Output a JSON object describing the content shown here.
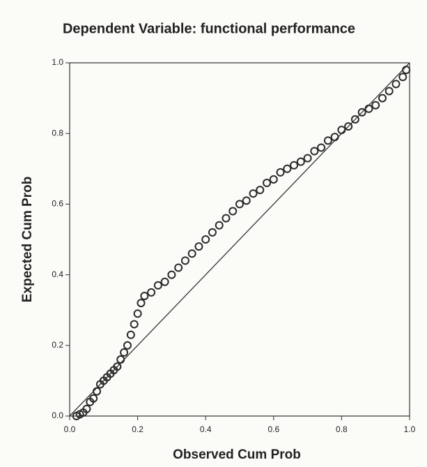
{
  "chart_data": {
    "type": "scatter",
    "title": "Dependent Variable: functional performance",
    "x_label": "Observed Cum Prob",
    "y_label": "Expected Cum Prob",
    "xlim": [
      0,
      1
    ],
    "ylim": [
      0,
      1
    ],
    "xticks": [
      {
        "value": 0,
        "label": "0.0"
      },
      {
        "value": 0.2,
        "label": "0.2"
      },
      {
        "value": 0.4,
        "label": "0.4"
      },
      {
        "value": 0.6,
        "label": "0.6"
      },
      {
        "value": 0.8,
        "label": "0.8"
      },
      {
        "value": 1,
        "label": "1.0"
      }
    ],
    "yticks": [
      {
        "value": 0,
        "label": "0.0"
      },
      {
        "value": 0.2,
        "label": "0.2"
      },
      {
        "value": 0.4,
        "label": "0.4"
      },
      {
        "value": 0.6,
        "label": "0.6"
      },
      {
        "value": 0.8,
        "label": "0.8"
      },
      {
        "value": 1,
        "label": "1.0"
      }
    ],
    "color": "#2a2a2a",
    "diagonal": {
      "x": [
        0,
        1
      ],
      "y": [
        0,
        1
      ]
    },
    "x": [
      0.02,
      0.03,
      0.04,
      0.05,
      0.06,
      0.07,
      0.08,
      0.09,
      0.1,
      0.11,
      0.12,
      0.13,
      0.14,
      0.15,
      0.16,
      0.17,
      0.18,
      0.19,
      0.2,
      0.21,
      0.22,
      0.24,
      0.26,
      0.28,
      0.3,
      0.32,
      0.34,
      0.36,
      0.38,
      0.4,
      0.42,
      0.44,
      0.46,
      0.48,
      0.5,
      0.52,
      0.54,
      0.56,
      0.58,
      0.6,
      0.62,
      0.64,
      0.66,
      0.68,
      0.7,
      0.72,
      0.74,
      0.76,
      0.78,
      0.8,
      0.82,
      0.84,
      0.86,
      0.88,
      0.9,
      0.92,
      0.94,
      0.96,
      0.98,
      0.99
    ],
    "y": [
      0.0,
      0.005,
      0.01,
      0.02,
      0.04,
      0.05,
      0.07,
      0.09,
      0.1,
      0.11,
      0.12,
      0.13,
      0.14,
      0.16,
      0.18,
      0.2,
      0.23,
      0.26,
      0.29,
      0.32,
      0.34,
      0.35,
      0.37,
      0.38,
      0.4,
      0.42,
      0.44,
      0.46,
      0.48,
      0.5,
      0.52,
      0.54,
      0.56,
      0.58,
      0.6,
      0.61,
      0.63,
      0.64,
      0.66,
      0.67,
      0.69,
      0.7,
      0.71,
      0.72,
      0.73,
      0.75,
      0.76,
      0.78,
      0.79,
      0.81,
      0.82,
      0.84,
      0.86,
      0.87,
      0.88,
      0.9,
      0.92,
      0.94,
      0.96,
      0.98
    ]
  }
}
